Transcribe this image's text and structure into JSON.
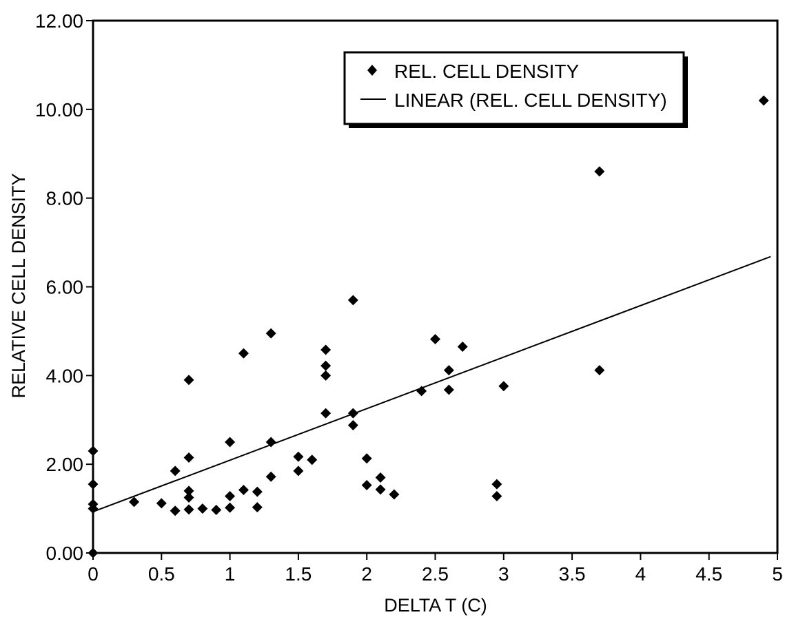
{
  "chart_data": {
    "type": "scatter",
    "title": "",
    "xlabel": "DELTA T (C)",
    "ylabel": "RELATIVE CELL DENSITY",
    "xlim": [
      0,
      5
    ],
    "ylim": [
      0,
      12
    ],
    "x_ticks": [
      0,
      0.5,
      1,
      1.5,
      2,
      2.5,
      3,
      3.5,
      4,
      4.5,
      5
    ],
    "x_tick_labels": [
      "0",
      "0.5",
      "1",
      "1.5",
      "2",
      "2.5",
      "3",
      "3.5",
      "4",
      "4.5",
      "5"
    ],
    "y_ticks": [
      0,
      2,
      4,
      6,
      8,
      10,
      12
    ],
    "y_tick_labels": [
      "0.00",
      "2.00",
      "4.00",
      "6.00",
      "8.00",
      "10.00",
      "12.00"
    ],
    "grid": false,
    "legend_position": "top-right",
    "series": [
      {
        "name": "REL. CELL DENSITY",
        "marker": "diamond",
        "points": [
          [
            0,
            0.0
          ],
          [
            0,
            1.0
          ],
          [
            0,
            1.1
          ],
          [
            0,
            1.55
          ],
          [
            0,
            2.3
          ],
          [
            0.3,
            1.15
          ],
          [
            0.5,
            1.12
          ],
          [
            0.6,
            0.95
          ],
          [
            0.6,
            1.85
          ],
          [
            0.7,
            0.98
          ],
          [
            0.7,
            1.25
          ],
          [
            0.7,
            1.4
          ],
          [
            0.7,
            2.15
          ],
          [
            0.7,
            3.9
          ],
          [
            0.8,
            1.0
          ],
          [
            0.9,
            0.97
          ],
          [
            1.0,
            1.02
          ],
          [
            1.0,
            1.28
          ],
          [
            1.0,
            2.5
          ],
          [
            1.1,
            1.42
          ],
          [
            1.1,
            4.5
          ],
          [
            1.2,
            1.03
          ],
          [
            1.2,
            1.38
          ],
          [
            1.3,
            1.72
          ],
          [
            1.3,
            2.5
          ],
          [
            1.3,
            4.95
          ],
          [
            1.5,
            1.85
          ],
          [
            1.5,
            2.17
          ],
          [
            1.6,
            2.1
          ],
          [
            1.7,
            3.15
          ],
          [
            1.7,
            4.0
          ],
          [
            1.7,
            4.22
          ],
          [
            1.7,
            4.58
          ],
          [
            1.9,
            2.88
          ],
          [
            1.9,
            3.15
          ],
          [
            1.9,
            5.7
          ],
          [
            2.0,
            1.53
          ],
          [
            2.0,
            2.13
          ],
          [
            2.1,
            1.43
          ],
          [
            2.1,
            1.7
          ],
          [
            2.2,
            1.32
          ],
          [
            2.4,
            3.65
          ],
          [
            2.5,
            4.82
          ],
          [
            2.6,
            3.68
          ],
          [
            2.6,
            4.12
          ],
          [
            2.7,
            4.65
          ],
          [
            2.95,
            1.28
          ],
          [
            2.95,
            1.55
          ],
          [
            3.0,
            3.76
          ],
          [
            3.7,
            8.6
          ],
          [
            3.7,
            4.12
          ],
          [
            4.9,
            10.2
          ]
        ]
      },
      {
        "name": "LINEAR (REL. CELL DENSITY)",
        "type": "line",
        "points": [
          [
            0,
            0.93
          ],
          [
            4.95,
            6.68
          ]
        ]
      }
    ]
  }
}
